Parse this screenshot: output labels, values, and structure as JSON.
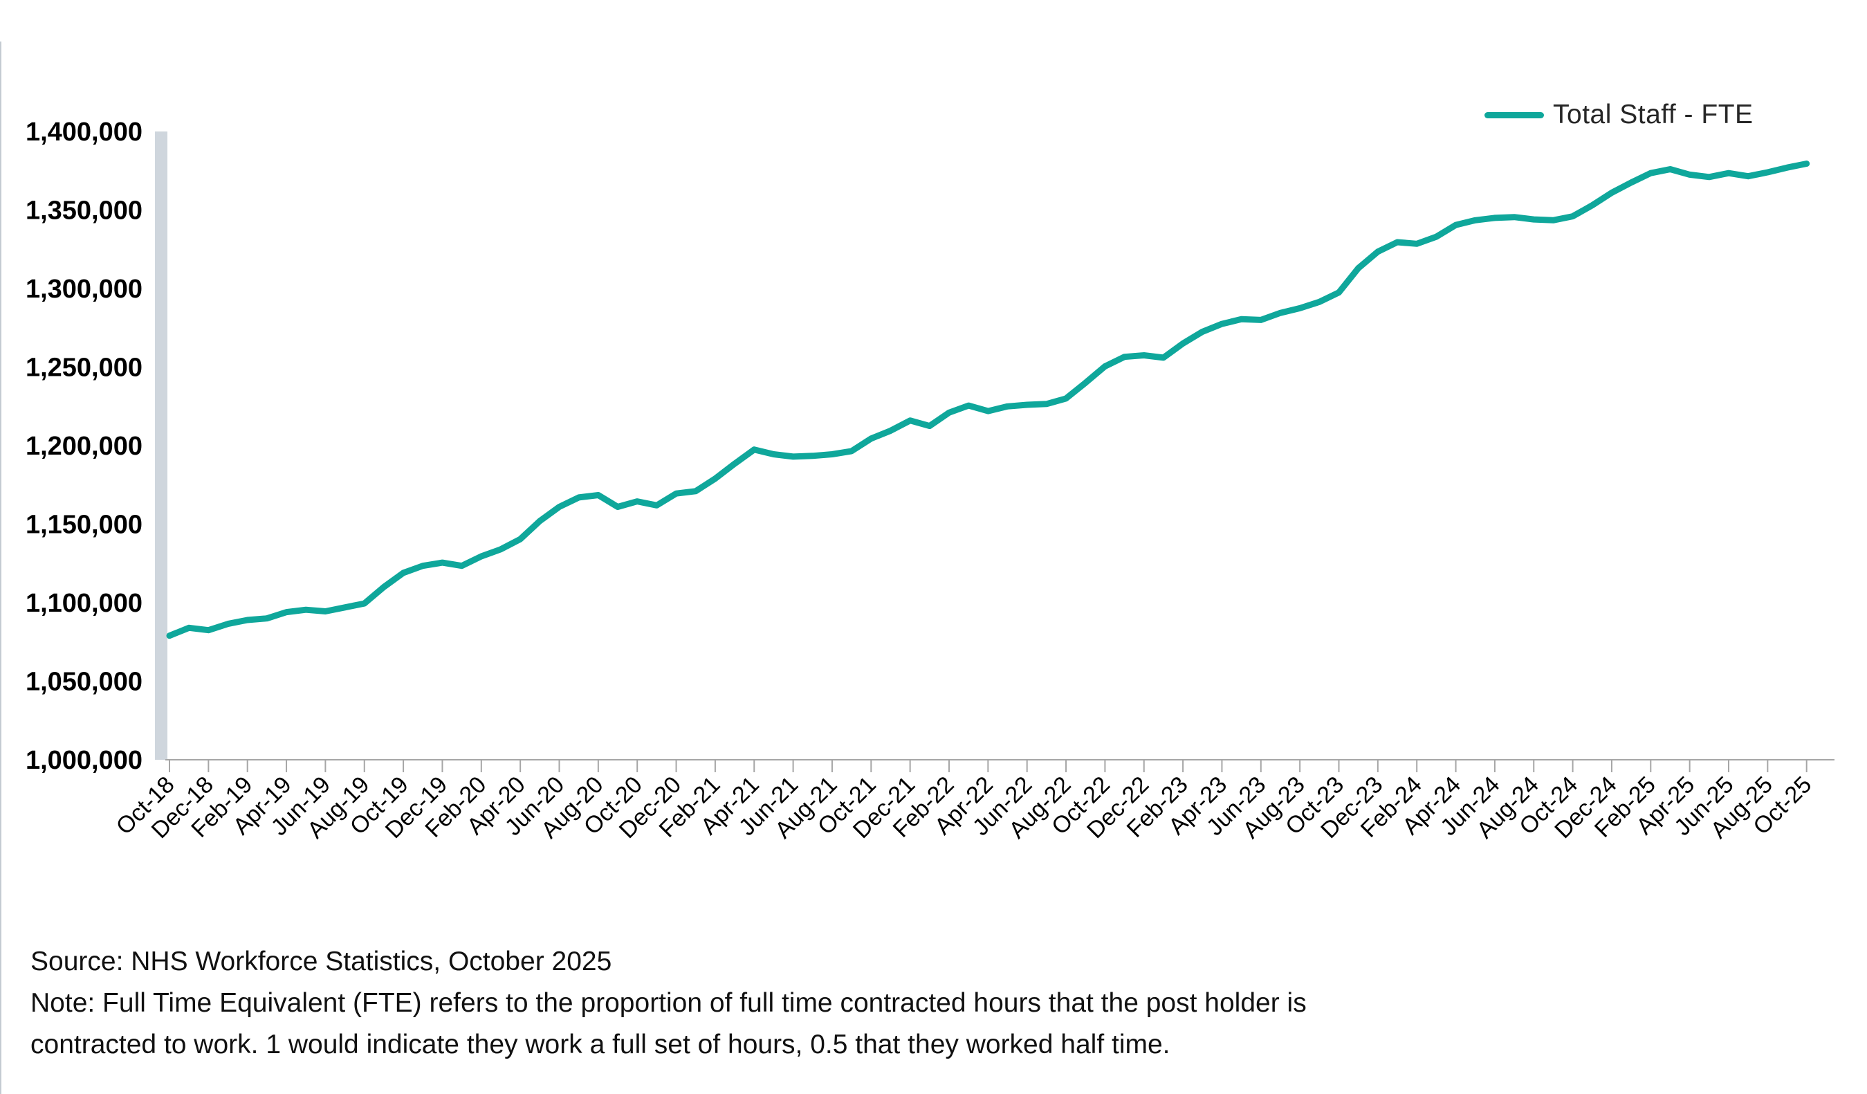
{
  "legend": {
    "label": "Total Staff - FTE",
    "color": "#0FA79B"
  },
  "colors": {
    "line": "#0FA79B",
    "axis": "#A6A6A6",
    "highlight_bar": "#CFD6DD",
    "page_border": "#C4CBD2",
    "text": "#000000"
  },
  "y_axis": {
    "tick_labels": [
      "1,400,000",
      "1,350,000",
      "1,300,000",
      "1,250,000",
      "1,200,000",
      "1,150,000",
      "1,100,000",
      "1,050,000",
      "1,000,000"
    ]
  },
  "x_axis": {
    "tick_labels": [
      "Oct-18",
      "Dec-18",
      "Feb-19",
      "Apr-19",
      "Jun-19",
      "Aug-19",
      "Oct-19",
      "Dec-19",
      "Feb-20",
      "Apr-20",
      "Jun-20",
      "Aug-20",
      "Oct-20",
      "Dec-20",
      "Feb-21",
      "Apr-21",
      "Jun-21",
      "Aug-21",
      "Oct-21",
      "Dec-21",
      "Feb-22",
      "Apr-22",
      "Jun-22",
      "Aug-22",
      "Oct-22",
      "Dec-22",
      "Feb-23",
      "Apr-23",
      "Jun-23",
      "Aug-23",
      "Oct-23",
      "Dec-23",
      "Feb-24",
      "Apr-24",
      "Jun-24",
      "Aug-24",
      "Oct-24",
      "Dec-24",
      "Feb-25",
      "Apr-25",
      "Jun-25",
      "Aug-25",
      "Oct-25"
    ]
  },
  "footnote": {
    "source": "Source: NHS Workforce Statistics, October 2025",
    "note1": "Note: Full Time Equivalent (FTE) refers to the proportion of full time contracted hours that the post holder is",
    "note2": "contracted to work. 1 would indicate they work a full set of hours, 0.5 that they worked half time."
  },
  "chart_data": {
    "type": "line",
    "title": "",
    "xlabel": "",
    "ylabel": "",
    "ylim": [
      1000000,
      1400000
    ],
    "y_tick_step": 50000,
    "grid": false,
    "legend_position": "top-right",
    "series_name": "Total Staff - FTE",
    "months": [
      "Oct-18",
      "Nov-18",
      "Dec-18",
      "Jan-19",
      "Feb-19",
      "Mar-19",
      "Apr-19",
      "May-19",
      "Jun-19",
      "Jul-19",
      "Aug-19",
      "Sep-19",
      "Oct-19",
      "Nov-19",
      "Dec-19",
      "Jan-20",
      "Feb-20",
      "Mar-20",
      "Apr-20",
      "May-20",
      "Jun-20",
      "Jul-20",
      "Aug-20",
      "Sep-20",
      "Oct-20",
      "Nov-20",
      "Dec-20",
      "Jan-21",
      "Feb-21",
      "Mar-21",
      "Apr-21",
      "May-21",
      "Jun-21",
      "Jul-21",
      "Aug-21",
      "Sep-21",
      "Oct-21",
      "Nov-21",
      "Dec-21",
      "Jan-22",
      "Feb-22",
      "Mar-22",
      "Apr-22",
      "May-22",
      "Jun-22",
      "Jul-22",
      "Aug-22",
      "Sep-22",
      "Oct-22",
      "Nov-22",
      "Dec-22",
      "Jan-23",
      "Feb-23",
      "Mar-23",
      "Apr-23",
      "May-23",
      "Jun-23",
      "Jul-23",
      "Aug-23",
      "Sep-23",
      "Oct-23",
      "Nov-23",
      "Dec-23",
      "Jan-24",
      "Feb-24",
      "Mar-24",
      "Apr-24",
      "May-24",
      "Jun-24",
      "Jul-24",
      "Aug-24",
      "Sep-24",
      "Oct-24",
      "Nov-24",
      "Dec-24",
      "Jan-25",
      "Feb-25",
      "Mar-25",
      "Apr-25",
      "May-25",
      "Jun-25",
      "Jul-25",
      "Aug-25",
      "Sep-25",
      "Oct-25"
    ],
    "values": [
      1079000,
      1084000,
      1082500,
      1086500,
      1089000,
      1090000,
      1094000,
      1095500,
      1094500,
      1097000,
      1099500,
      1110000,
      1119000,
      1123500,
      1125500,
      1123500,
      1129500,
      1134000,
      1140500,
      1152000,
      1161000,
      1167000,
      1168500,
      1161000,
      1164500,
      1162000,
      1169500,
      1171000,
      1179000,
      1188500,
      1197500,
      1194500,
      1193000,
      1193500,
      1194500,
      1196500,
      1204500,
      1209500,
      1216000,
      1212500,
      1221000,
      1225500,
      1222000,
      1225000,
      1226000,
      1226500,
      1230000,
      1240000,
      1250500,
      1256500,
      1257500,
      1256000,
      1265000,
      1272500,
      1277500,
      1280500,
      1280000,
      1284500,
      1287500,
      1291500,
      1297500,
      1313000,
      1323500,
      1329500,
      1328500,
      1333000,
      1340500,
      1343500,
      1345000,
      1345500,
      1344000,
      1343500,
      1346000,
      1353000,
      1361000,
      1367500,
      1373500,
      1376000,
      1372500,
      1371000,
      1373500,
      1371500,
      1374000,
      1377000,
      1379500
    ]
  }
}
